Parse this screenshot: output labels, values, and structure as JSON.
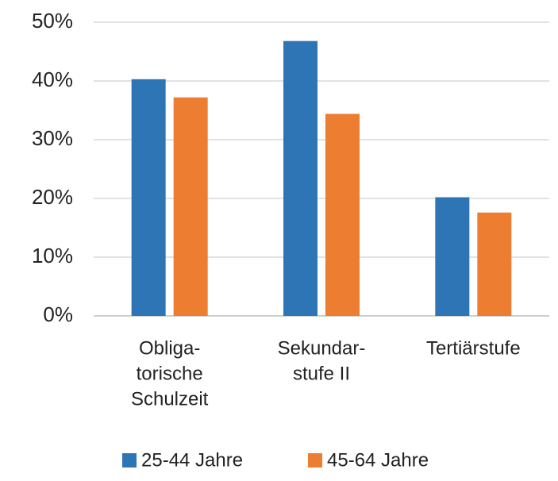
{
  "chart_data": {
    "type": "bar",
    "categories": [
      [
        "Obliga-",
        "torische",
        "Schulzeit"
      ],
      [
        "Sekundar-",
        "stufe II"
      ],
      [
        "Tertiärstufe"
      ]
    ],
    "series": [
      {
        "name": "25-44 Jahre",
        "color": "#2e75b6",
        "values": [
          40.3,
          46.8,
          20.2
        ]
      },
      {
        "name": "45-64 Jahre",
        "color": "#ed7d31",
        "values": [
          37.2,
          34.4,
          17.6
        ]
      }
    ],
    "ylim": [
      0,
      50
    ],
    "yticks": [
      {
        "value": 0,
        "label": "0%"
      },
      {
        "value": 10,
        "label": "10%"
      },
      {
        "value": 20,
        "label": "20%"
      },
      {
        "value": 30,
        "label": "30%"
      },
      {
        "value": 40,
        "label": "40%"
      },
      {
        "value": 50,
        "label": "50%"
      }
    ],
    "grid": true,
    "legend": "bottom"
  }
}
